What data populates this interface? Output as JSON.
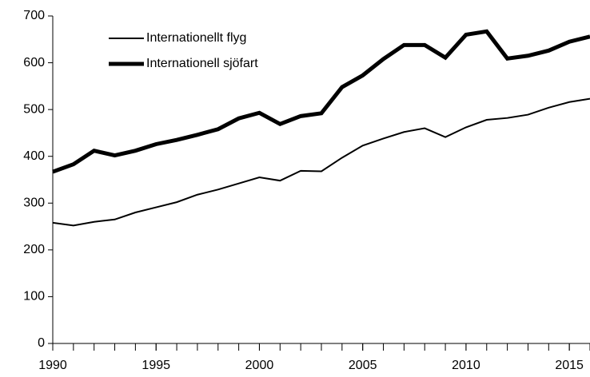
{
  "chart_data": {
    "type": "line",
    "x": [
      1990,
      1991,
      1992,
      1993,
      1994,
      1995,
      1996,
      1997,
      1998,
      1999,
      2000,
      2001,
      2002,
      2003,
      2004,
      2005,
      2006,
      2007,
      2008,
      2009,
      2010,
      2011,
      2012,
      2013,
      2014,
      2015,
      2016
    ],
    "series": [
      {
        "name": "Internationellt flyg",
        "color": "#000000",
        "width": 2,
        "values": [
          258,
          252,
          260,
          265,
          280,
          291,
          302,
          318,
          329,
          342,
          355,
          348,
          369,
          368,
          397,
          423,
          438,
          452,
          460,
          441,
          462,
          478,
          482,
          489,
          504,
          516,
          523
        ]
      },
      {
        "name": "Internationell sjöfart",
        "color": "#000000",
        "width": 5,
        "values": [
          367,
          383,
          412,
          402,
          412,
          426,
          435,
          446,
          458,
          481,
          493,
          469,
          486,
          492,
          548,
          573,
          608,
          638,
          638,
          611,
          660,
          667,
          609,
          615,
          626,
          645,
          656
        ]
      }
    ],
    "xlim": [
      1990,
      2016
    ],
    "xticks": [
      1990,
      1995,
      2000,
      2005,
      2010,
      2015
    ],
    "ylim": [
      0,
      700
    ],
    "yticks": [
      0,
      100,
      200,
      300,
      400,
      500,
      600,
      700
    ],
    "grid": false,
    "legend": "upper left"
  }
}
